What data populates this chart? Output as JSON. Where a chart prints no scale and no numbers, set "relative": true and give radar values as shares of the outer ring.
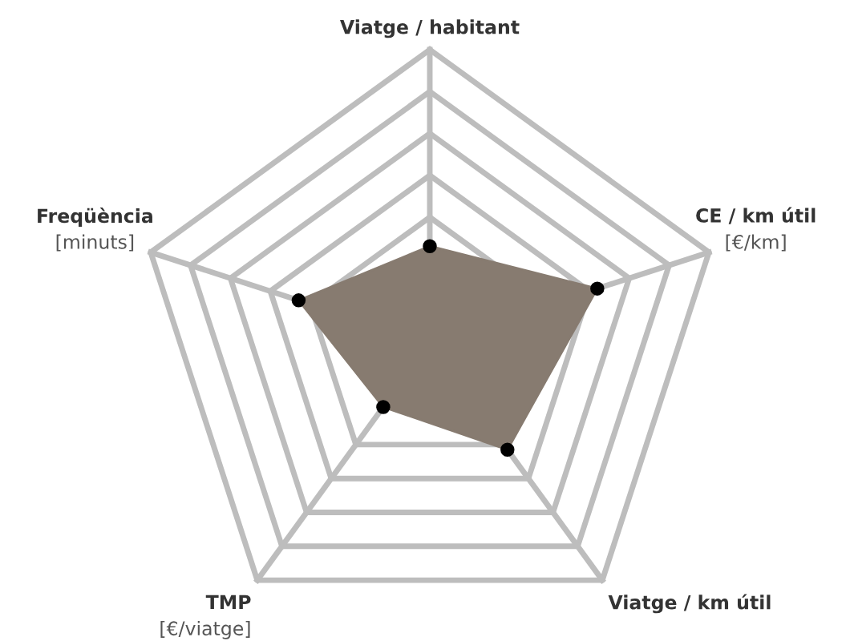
{
  "chart_data": {
    "type": "radar",
    "relative": true,
    "categories": [
      "Viatge / habitant",
      "CE / km útil\n[€/km]",
      "Viatge / km útil",
      "TMP\n[€/viatge]",
      "Freqüència\n[minuts]"
    ],
    "series": [
      {
        "color": "#877b70",
        "values": [
          0.33,
          0.6,
          0.45,
          0.27,
          0.47
        ]
      }
    ],
    "marker": "circle",
    "grid": true
  }
}
